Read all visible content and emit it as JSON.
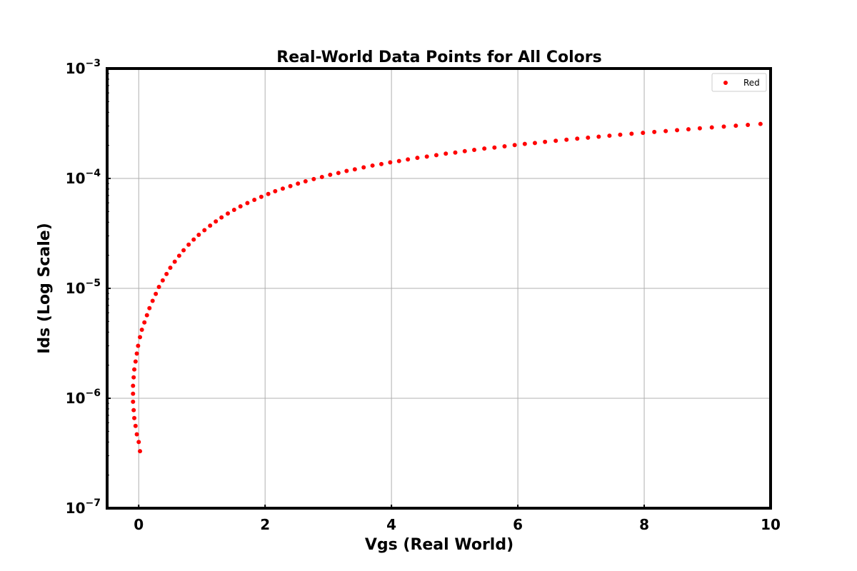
{
  "chart_data": {
    "type": "scatter",
    "title": "Real-World Data Points for All Colors",
    "xlabel": "Vgs (Real World)",
    "ylabel": "Ids (Log Scale)",
    "xlim": [
      -0.5,
      10
    ],
    "ylim": [
      1e-07,
      0.001
    ],
    "yscale": "log",
    "grid": true,
    "legend_position": "top-right",
    "x_ticks": [
      0,
      2,
      4,
      6,
      8,
      10
    ],
    "x_tick_labels": [
      "0",
      "2",
      "4",
      "6",
      "8",
      "10"
    ],
    "y_ticks": [
      {
        "value": 1e-07,
        "base": "10",
        "exp": "−7"
      },
      {
        "value": 1e-06,
        "base": "10",
        "exp": "−6"
      },
      {
        "value": 1e-05,
        "base": "10",
        "exp": "−5"
      },
      {
        "value": 0.0001,
        "base": "10",
        "exp": "−4"
      },
      {
        "value": 0.001,
        "base": "10",
        "exp": "−3"
      }
    ],
    "series": [
      {
        "name": "Red",
        "color": "#ff0000",
        "points": [
          [
            0.02,
            3.3e-07
          ],
          [
            0.0,
            4e-07
          ],
          [
            -0.03,
            4.7e-07
          ],
          [
            -0.05,
            5.6e-07
          ],
          [
            -0.07,
            6.6e-07
          ],
          [
            -0.08,
            7.8e-07
          ],
          [
            -0.09,
            9.3e-07
          ],
          [
            -0.09,
            1.1e-06
          ],
          [
            -0.09,
            1.3e-06
          ],
          [
            -0.08,
            1.55e-06
          ],
          [
            -0.07,
            1.83e-06
          ],
          [
            -0.05,
            2.16e-06
          ],
          [
            -0.03,
            2.55e-06
          ],
          [
            -0.01,
            3e-06
          ],
          [
            0.02,
            3.6e-06
          ],
          [
            0.05,
            4.2e-06
          ],
          [
            0.09,
            4.9e-06
          ],
          [
            0.13,
            5.7e-06
          ],
          [
            0.17,
            6.6e-06
          ],
          [
            0.22,
            7.7e-06
          ],
          [
            0.27,
            8.9e-06
          ],
          [
            0.32,
            1.03e-05
          ],
          [
            0.38,
            1.18e-05
          ],
          [
            0.44,
            1.35e-05
          ],
          [
            0.5,
            1.54e-05
          ],
          [
            0.57,
            1.75e-05
          ],
          [
            0.64,
            1.98e-05
          ],
          [
            0.71,
            2.22e-05
          ],
          [
            0.79,
            2.5e-05
          ],
          [
            0.87,
            2.78e-05
          ],
          [
            0.95,
            3.07e-05
          ],
          [
            1.04,
            3.38e-05
          ],
          [
            1.13,
            3.72e-05
          ],
          [
            1.22,
            4.06e-05
          ],
          [
            1.31,
            4.42e-05
          ],
          [
            1.41,
            4.8e-05
          ],
          [
            1.51,
            5.18e-05
          ],
          [
            1.61,
            5.57e-05
          ],
          [
            1.72,
            5.97e-05
          ],
          [
            1.83,
            6.38e-05
          ],
          [
            1.94,
            6.8e-05
          ],
          [
            2.05,
            7.22e-05
          ],
          [
            2.16,
            7.65e-05
          ],
          [
            2.28,
            8.08e-05
          ],
          [
            2.4,
            8.52e-05
          ],
          [
            2.52,
            8.97e-05
          ],
          [
            2.64,
            9.42e-05
          ],
          [
            2.77,
            9.87e-05
          ],
          [
            2.9,
            0.000103
          ],
          [
            3.03,
            0.000108
          ],
          [
            3.16,
            0.000112
          ],
          [
            3.29,
            0.000117
          ],
          [
            3.42,
            0.000121
          ],
          [
            3.56,
            0.000126
          ],
          [
            3.7,
            0.000131
          ],
          [
            3.84,
            0.000135
          ],
          [
            3.98,
            0.00014
          ],
          [
            4.12,
            0.000144
          ],
          [
            4.26,
            0.000149
          ],
          [
            4.41,
            0.000154
          ],
          [
            4.56,
            0.000158
          ],
          [
            4.71,
            0.000163
          ],
          [
            4.86,
            0.000168
          ],
          [
            5.01,
            0.000172
          ],
          [
            5.16,
            0.000177
          ],
          [
            5.31,
            0.000182
          ],
          [
            5.47,
            0.000187
          ],
          [
            5.63,
            0.000191
          ],
          [
            5.79,
            0.000196
          ],
          [
            5.95,
            0.000201
          ],
          [
            6.11,
            0.000206
          ],
          [
            6.27,
            0.00021
          ],
          [
            6.43,
            0.000215
          ],
          [
            6.6,
            0.00022
          ],
          [
            6.77,
            0.000225
          ],
          [
            6.94,
            0.00023
          ],
          [
            7.11,
            0.000235
          ],
          [
            7.28,
            0.00024
          ],
          [
            7.45,
            0.000245
          ],
          [
            7.62,
            0.00025
          ],
          [
            7.8,
            0.000255
          ],
          [
            7.98,
            0.00026
          ],
          [
            8.16,
            0.000265
          ],
          [
            8.34,
            0.00027
          ],
          [
            8.52,
            0.000275
          ],
          [
            8.7,
            0.00028
          ],
          [
            8.88,
            0.000286
          ],
          [
            9.07,
            0.000291
          ],
          [
            9.26,
            0.000296
          ],
          [
            9.45,
            0.000302
          ],
          [
            9.64,
            0.000307
          ],
          [
            9.84,
            0.000313
          ]
        ]
      }
    ]
  }
}
